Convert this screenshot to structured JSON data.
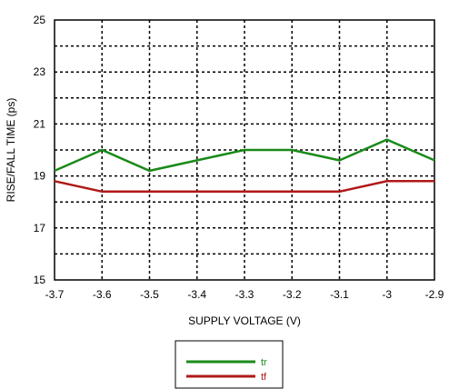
{
  "chart_data": {
    "type": "line",
    "xlabel": "SUPPLY VOLTAGE (V)",
    "ylabel": "RISE/FALL TIME (ps)",
    "xlim": [
      -3.7,
      -2.9
    ],
    "ylim": [
      15,
      25
    ],
    "x_ticks": [
      "-3.7",
      "-3.6",
      "-3.5",
      "-3.4",
      "-3.3",
      "-3.2",
      "-3.1",
      "-3",
      "-2.9"
    ],
    "y_ticks": [
      "15",
      "17",
      "19",
      "21",
      "23",
      "25"
    ],
    "grid": true,
    "legend_position": "bottom-center",
    "x": [
      -3.7,
      -3.6,
      -3.5,
      -3.4,
      -3.3,
      -3.2,
      -3.1,
      -3.0,
      -2.9
    ],
    "series": [
      {
        "name": "tr",
        "color": "#1a8a1a",
        "values": [
          19.2,
          20.0,
          19.2,
          19.6,
          20.0,
          20.0,
          19.6,
          20.4,
          19.6
        ]
      },
      {
        "name": "tf",
        "color": "#b01818",
        "values": [
          18.8,
          18.4,
          18.4,
          18.4,
          18.4,
          18.4,
          18.4,
          18.8,
          18.8
        ]
      }
    ]
  }
}
